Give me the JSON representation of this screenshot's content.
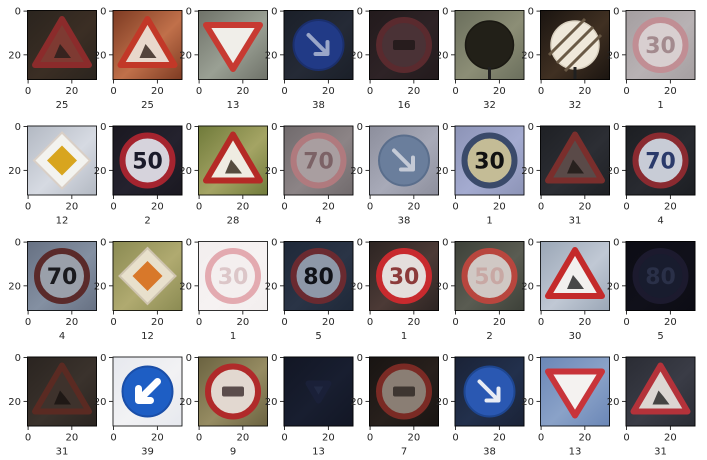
{
  "chart_data": {
    "type": "image_grid",
    "rows": 4,
    "cols": 8,
    "x_ticks": [
      "0",
      "20"
    ],
    "y_ticks": [
      "0",
      "20"
    ],
    "panels": [
      {
        "label": "25",
        "sign": "warning-triangle",
        "symbol": "roadwork",
        "bg": "#2a241e",
        "mid": "#3b2e24",
        "face": "#7e3a32",
        "edge": "#8b2b2b",
        "ink": "#2a201c"
      },
      {
        "label": "25",
        "sign": "warning-triangle",
        "symbol": "roadwork",
        "bg": "#7c3a22",
        "mid": "#c0704a",
        "face": "#e8d8cc",
        "edge": "#c23828",
        "ink": "#3a2a22"
      },
      {
        "label": "13",
        "sign": "yield-triangle",
        "symbol": "none",
        "bg": "#6e7168",
        "mid": "#9aa094",
        "face": "#f0eee9",
        "edge": "#c73a32",
        "ink": "#000000"
      },
      {
        "label": "38",
        "sign": "blue-circle",
        "symbol": "arrow-down-right",
        "bg": "#1a1f28",
        "mid": "#252a36",
        "face": "#213a86",
        "edge": "#1b2f6c",
        "ink": "#9aa6c8"
      },
      {
        "label": "16",
        "sign": "red-ring",
        "symbol": "truck",
        "bg": "#221a1c",
        "mid": "#2e2326",
        "face": "#4a3236",
        "edge": "#5a2a2e",
        "ink": "#1e1618"
      },
      {
        "label": "32",
        "sign": "end-limits",
        "symbol": "none",
        "bg": "#6a6e5c",
        "mid": "#8c8e76",
        "face": "#222018",
        "edge": "#1a1812",
        "ink": "#2a2820"
      },
      {
        "label": "32",
        "sign": "end-limits",
        "symbol": "stripes",
        "bg": "#1a1410",
        "mid": "#403022",
        "face": "#efe8da",
        "edge": "#d8cfbe",
        "ink": "#6a5a46"
      },
      {
        "label": "1",
        "sign": "red-ring",
        "symbol": "30",
        "bg": "#a49ea0",
        "mid": "#b8b2b4",
        "face": "#d8cfd0",
        "edge": "#c18e94",
        "ink": "#a38a8e"
      },
      {
        "label": "12",
        "sign": "priority-diamond",
        "symbol": "none",
        "bg": "#b2b8c2",
        "mid": "#d6dae2",
        "face": "#f3f3ef",
        "edge": "#d9cfc6",
        "ink": "#d8a51e"
      },
      {
        "label": "2",
        "sign": "red-ring",
        "symbol": "50",
        "bg": "#1a1820",
        "mid": "#24222e",
        "face": "#d6d3dc",
        "edge": "#a5242f",
        "ink": "#1a1a2a"
      },
      {
        "label": "28",
        "sign": "warning-triangle",
        "symbol": "children",
        "bg": "#6f7a3a",
        "mid": "#a4a464",
        "face": "#efece2",
        "edge": "#b52a26",
        "ink": "#3a3022"
      },
      {
        "label": "4",
        "sign": "red-ring",
        "symbol": "70",
        "bg": "#706a6c",
        "mid": "#8c8486",
        "face": "#a99ea0",
        "edge": "#b07a7e",
        "ink": "#7c6266"
      },
      {
        "label": "38",
        "sign": "blue-circle",
        "symbol": "arrow-down-right",
        "bg": "#8c8e9c",
        "mid": "#a8aab8",
        "face": "#6a7e9c",
        "edge": "#5a6e8c",
        "ink": "#c4cad6"
      },
      {
        "label": "1",
        "sign": "red-ring",
        "symbol": "30",
        "bg": "#8c93b6",
        "mid": "#a4abd0",
        "face": "#c4bc96",
        "edge": "#3a4a6a",
        "ink": "#111111"
      },
      {
        "label": "31",
        "sign": "warning-triangle",
        "symbol": "deer",
        "bg": "#1e2024",
        "mid": "#2c2e34",
        "face": "#5a4a48",
        "edge": "#7a2e2c",
        "ink": "#201a18"
      },
      {
        "label": "4",
        "sign": "red-ring",
        "symbol": "70",
        "bg": "#1c1e22",
        "mid": "#282a30",
        "face": "#c8ccd6",
        "edge": "#8a2a30",
        "ink": "#2a3a6a"
      },
      {
        "label": "4",
        "sign": "red-ring",
        "symbol": "70",
        "bg": "#667082",
        "mid": "#8490a2",
        "face": "#9aa0aa",
        "edge": "#5a2a2a",
        "ink": "#1a1a1e"
      },
      {
        "label": "12",
        "sign": "priority-diamond",
        "symbol": "none",
        "bg": "#8a8a52",
        "mid": "#b0aa70",
        "face": "#e8e0cc",
        "edge": "#cfc4b0",
        "ink": "#d8782a"
      },
      {
        "label": "1",
        "sign": "red-ring",
        "symbol": "30",
        "bg": "#f2eeee",
        "mid": "#f6f2f2",
        "face": "#f4efef",
        "edge": "#e3aab0",
        "ink": "#dcc6c8"
      },
      {
        "label": "5",
        "sign": "red-ring",
        "symbol": "80",
        "bg": "#1e2838",
        "mid": "#2a3446",
        "face": "#8e98a8",
        "edge": "#6a2a30",
        "ink": "#101218"
      },
      {
        "label": "1",
        "sign": "red-ring",
        "symbol": "30",
        "bg": "#2c2422",
        "mid": "#4c3a36",
        "face": "#e4dedc",
        "edge": "#c82a2e",
        "ink": "#8c3a3a"
      },
      {
        "label": "2",
        "sign": "red-ring",
        "symbol": "50",
        "bg": "#3c4038",
        "mid": "#5a5c52",
        "face": "#d0c8c4",
        "edge": "#b8463e",
        "ink": "#c8a8a4"
      },
      {
        "label": "30",
        "sign": "warning-triangle",
        "symbol": "snow",
        "bg": "#9aa6b6",
        "mid": "#c0c8d4",
        "face": "#f2f0ee",
        "edge": "#c42a2a",
        "ink": "#2a2a2a"
      },
      {
        "label": "5",
        "sign": "red-ring",
        "symbol": "80",
        "bg": "#0c0c14",
        "mid": "#10101a",
        "face": "#181c2e",
        "edge": "#1c1a2e",
        "ink": "#2a3048"
      },
      {
        "label": "31",
        "sign": "warning-triangle",
        "symbol": "deer",
        "bg": "#2a2420",
        "mid": "#3a322c",
        "face": "#3e322c",
        "edge": "#5a2a22",
        "ink": "#1a1412"
      },
      {
        "label": "39",
        "sign": "blue-circle",
        "symbol": "arrow-down-left",
        "bg": "#e6e8ee",
        "mid": "#f2f2f4",
        "face": "#1e5ec4",
        "edge": "#1a4ea8",
        "ink": "#ffffff"
      },
      {
        "label": "9",
        "sign": "red-ring",
        "symbol": "cars",
        "bg": "#6a6240",
        "mid": "#968c62",
        "face": "#e2d8d0",
        "edge": "#b02a2a",
        "ink": "#3a2a2a"
      },
      {
        "label": "13",
        "sign": "yield-triangle",
        "symbol": "small",
        "bg": "#121624",
        "mid": "#181e30",
        "face": "#222a44",
        "edge": "#1a2038",
        "ink": "#0e1220"
      },
      {
        "label": "7",
        "sign": "red-ring",
        "symbol": "truck",
        "bg": "#181412",
        "mid": "#28201c",
        "face": "#8a7e74",
        "edge": "#7a2a24",
        "ink": "#2a2420"
      },
      {
        "label": "38",
        "sign": "blue-circle",
        "symbol": "arrow-down-right",
        "bg": "#1a2236",
        "mid": "#22304c",
        "face": "#2a58b2",
        "edge": "#1e4690",
        "ink": "#e8ecf4"
      },
      {
        "label": "13",
        "sign": "yield-triangle",
        "symbol": "none",
        "bg": "#6a86b6",
        "mid": "#8aa2c8",
        "face": "#f4f2f0",
        "edge": "#c8343a",
        "ink": "#3a3a3a"
      },
      {
        "label": "31",
        "sign": "warning-triangle",
        "symbol": "deer",
        "bg": "#2a2c34",
        "mid": "#3a3c46",
        "face": "#dcd6d2",
        "edge": "#b4323a",
        "ink": "#2a2a2a"
      }
    ]
  }
}
